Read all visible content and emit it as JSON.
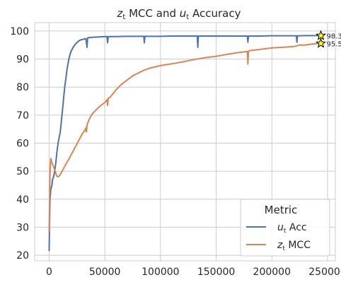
{
  "chart_data": {
    "type": "line",
    "title": {
      "prefix_var": "z",
      "prefix_sub": "t",
      "middle": " MCC and ",
      "suffix_var": "u",
      "suffix_sub": "t",
      "end": " Accuracy"
    },
    "xlabel": "",
    "ylabel": "",
    "xlim": [
      -13000,
      257000
    ],
    "ylim": [
      18,
      103
    ],
    "xticks": [
      0,
      50000,
      100000,
      150000,
      200000,
      250000
    ],
    "yticks": [
      20,
      30,
      40,
      50,
      60,
      70,
      80,
      90,
      100
    ],
    "grid": true,
    "legend": {
      "title": "Metric",
      "placement": "lower-right",
      "entries": [
        {
          "var": "u",
          "sub": "t",
          "rest": " Acc",
          "color": "#4c72b0"
        },
        {
          "var": "z",
          "sub": "t",
          "rest": " MCC",
          "color": "#dd8452"
        }
      ]
    },
    "series": [
      {
        "key": "u_acc",
        "color": "#4c72b0",
        "x": [
          0,
          300,
          800,
          1500,
          2500,
          3000,
          4000,
          5000,
          6000,
          7000,
          8000,
          9000,
          10000,
          11000,
          12000,
          13000,
          14000,
          15000,
          16000,
          17000,
          18000,
          19000,
          20000,
          22000,
          24000,
          26000,
          28000,
          30000,
          32000,
          33000,
          34000,
          34500,
          35000,
          40000,
          45000,
          50000,
          52000,
          52500,
          53000,
          60000,
          70000,
          80000,
          85000,
          85500,
          86000,
          100000,
          110000,
          120000,
          130000,
          133000,
          133500,
          134000,
          150000,
          160000,
          170000,
          178000,
          178500,
          179000,
          190000,
          200000,
          210000,
          220000,
          222000,
          222500,
          223000,
          230000,
          240000,
          244000
        ],
        "y": [
          21.5,
          30,
          40,
          43.5,
          45,
          47,
          48,
          50,
          53,
          57,
          60,
          62,
          64,
          68,
          72,
          76,
          80,
          83,
          86,
          88.5,
          90.5,
          92,
          93,
          94.5,
          95.5,
          96.3,
          96.8,
          97,
          97.2,
          97.3,
          94.2,
          97.5,
          97.6,
          97.8,
          97.9,
          98,
          98,
          95.8,
          98,
          98,
          98.1,
          98.1,
          98.1,
          95.8,
          98.1,
          98.1,
          98.2,
          98.2,
          98.2,
          98.2,
          94.2,
          98.2,
          98.2,
          98.2,
          98.2,
          98.2,
          96,
          98.2,
          98.2,
          98.3,
          98.3,
          98.3,
          98.3,
          96,
          98.3,
          98.35,
          98.37,
          98.37
        ],
        "final_value": "98.37"
      },
      {
        "key": "z_mcc",
        "color": "#dd8452",
        "x": [
          0,
          300,
          600,
          1000,
          1500,
          2500,
          3500,
          4500,
          5500,
          6500,
          7500,
          9000,
          11000,
          13000,
          15000,
          18000,
          20000,
          22000,
          24000,
          26000,
          28000,
          30000,
          32000,
          33000,
          33500,
          34000,
          36000,
          38000,
          40000,
          45000,
          50000,
          52000,
          52500,
          53000,
          55000,
          60000,
          65000,
          70000,
          75000,
          80000,
          85000,
          90000,
          95000,
          100000,
          105000,
          110000,
          120000,
          130000,
          140000,
          150000,
          160000,
          170000,
          178000,
          178500,
          179000,
          180000,
          190000,
          200000,
          210000,
          220000,
          225000,
          230000,
          235000,
          240000,
          244000
        ],
        "y": [
          28.5,
          35,
          45,
          52,
          54.5,
          53,
          52,
          51,
          50,
          48.5,
          48,
          48.2,
          49.5,
          51,
          52.5,
          54.5,
          56,
          57.5,
          59,
          60.5,
          62,
          63.5,
          64.5,
          65.5,
          64,
          66.5,
          68.5,
          70,
          71,
          73,
          74.5,
          75.5,
          73.5,
          76,
          76.5,
          79,
          81,
          82.5,
          84,
          85,
          86,
          86.7,
          87.2,
          87.7,
          88,
          88.3,
          89,
          89.8,
          90.5,
          91,
          91.7,
          92.3,
          92.7,
          88.2,
          92.8,
          93,
          93.5,
          94,
          94.2,
          94.5,
          95,
          95,
          95.3,
          95.5,
          95.59
        ],
        "final_value": "95.59"
      }
    ]
  }
}
